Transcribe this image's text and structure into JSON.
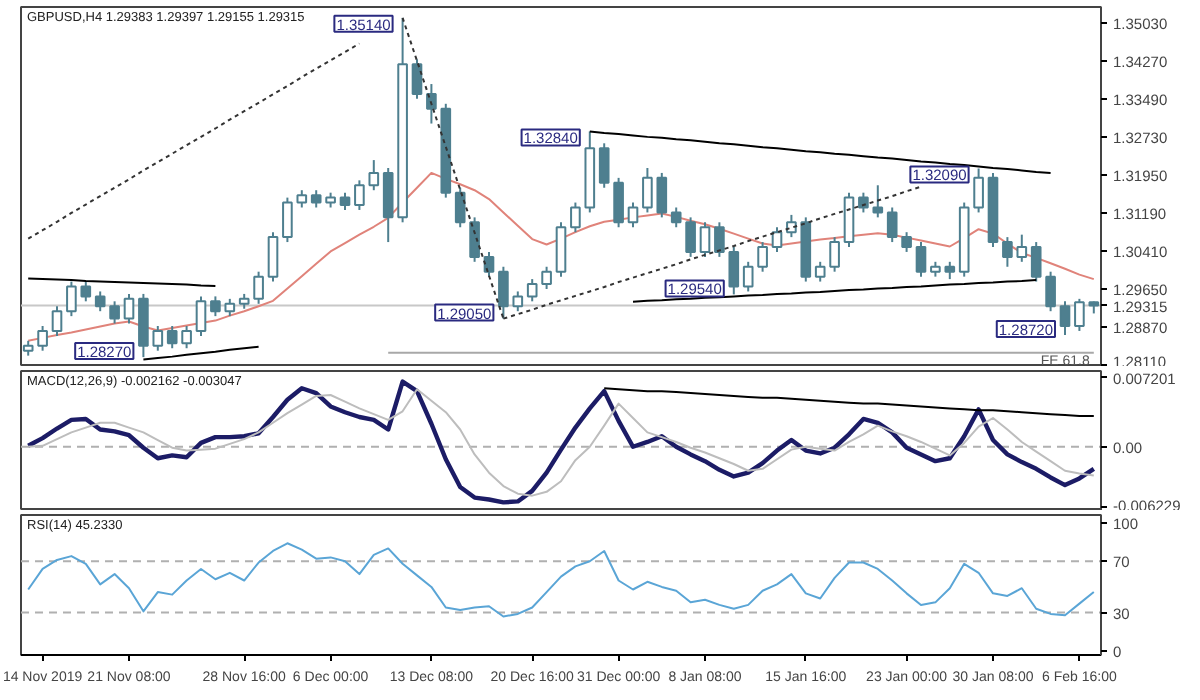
{
  "chart_data": [
    {
      "type": "candlestick",
      "title": "GBPUSD,H4  1.29383 1.29397 1.29155 1.29315",
      "color": "#4e7f8f",
      "categories": [
        null,
        null,
        null,
        null,
        null,
        null,
        null,
        null,
        null,
        null,
        null,
        null,
        null,
        null,
        null,
        null,
        null,
        null,
        null,
        null,
        null,
        null,
        null,
        null,
        null,
        null,
        null,
        null,
        null,
        null,
        null,
        null,
        null,
        null,
        null,
        null,
        null,
        null,
        null,
        null,
        null,
        null,
        null,
        null,
        null,
        null,
        null,
        null,
        null,
        null,
        null,
        null,
        null,
        null,
        null,
        null,
        null,
        null,
        null,
        null,
        null,
        null,
        null,
        null,
        null,
        null,
        null,
        null,
        null,
        null,
        null,
        null,
        null,
        null,
        null
      ],
      "ohlc": [
        [
          1.284,
          1.286,
          1.283,
          1.285
        ],
        [
          1.285,
          1.289,
          1.284,
          1.288
        ],
        [
          1.288,
          1.293,
          1.287,
          1.292
        ],
        [
          1.292,
          1.298,
          1.291,
          1.297
        ],
        [
          1.297,
          1.298,
          1.294,
          1.295
        ],
        [
          1.295,
          1.296,
          1.292,
          1.293
        ],
        [
          1.293,
          1.294,
          1.2895,
          1.2905
        ],
        [
          1.2905,
          1.2955,
          1.2895,
          1.2945
        ],
        [
          1.2945,
          1.2955,
          1.2827,
          1.285
        ],
        [
          1.285,
          1.289,
          1.284,
          1.288
        ],
        [
          1.288,
          1.289,
          1.2845,
          1.2855
        ],
        [
          1.2855,
          1.289,
          1.2845,
          1.288
        ],
        [
          1.288,
          1.295,
          1.287,
          1.294
        ],
        [
          1.294,
          1.295,
          1.291,
          1.292
        ],
        [
          1.292,
          1.2945,
          1.291,
          1.2935
        ],
        [
          1.2935,
          1.2955,
          1.2925,
          1.2945
        ],
        [
          1.2945,
          1.3,
          1.2935,
          1.299
        ],
        [
          1.299,
          1.308,
          1.298,
          1.307
        ],
        [
          1.307,
          1.315,
          1.306,
          1.314
        ],
        [
          1.314,
          1.3165,
          1.313,
          1.3155
        ],
        [
          1.3155,
          1.3165,
          1.313,
          1.314
        ],
        [
          1.314,
          1.316,
          1.313,
          1.315
        ],
        [
          1.315,
          1.316,
          1.3125,
          1.3135
        ],
        [
          1.3135,
          1.3185,
          1.3125,
          1.3175
        ],
        [
          1.3175,
          1.3226,
          1.3165,
          1.32
        ],
        [
          1.32,
          1.321,
          1.306,
          1.311
        ],
        [
          1.311,
          1.3514,
          1.31,
          1.342
        ],
        [
          1.342,
          1.343,
          1.335,
          1.336
        ],
        [
          1.336,
          1.338,
          1.33,
          1.333
        ],
        [
          1.333,
          1.334,
          1.315,
          1.316
        ],
        [
          1.316,
          1.317,
          1.309,
          1.31
        ],
        [
          1.31,
          1.311,
          1.302,
          1.303
        ],
        [
          1.303,
          1.304,
          1.299,
          1.3
        ],
        [
          1.3,
          1.301,
          1.2905,
          1.293
        ],
        [
          1.293,
          1.296,
          1.292,
          1.295
        ],
        [
          1.295,
          1.2985,
          1.294,
          1.2975
        ],
        [
          1.2975,
          1.301,
          1.2965,
          1.3
        ],
        [
          1.3,
          1.31,
          1.299,
          1.309
        ],
        [
          1.309,
          1.314,
          1.308,
          1.313
        ],
        [
          1.313,
          1.3284,
          1.312,
          1.325
        ],
        [
          1.325,
          1.326,
          1.317,
          1.318
        ],
        [
          1.318,
          1.319,
          1.309,
          1.31
        ],
        [
          1.31,
          1.314,
          1.309,
          1.313
        ],
        [
          1.313,
          1.321,
          1.312,
          1.319
        ],
        [
          1.319,
          1.32,
          1.311,
          1.312
        ],
        [
          1.312,
          1.313,
          1.309,
          1.31
        ],
        [
          1.31,
          1.311,
          1.303,
          1.304
        ],
        [
          1.304,
          1.31,
          1.303,
          1.309
        ],
        [
          1.309,
          1.31,
          1.303,
          1.304
        ],
        [
          1.304,
          1.305,
          1.2954,
          1.297
        ],
        [
          1.297,
          1.302,
          1.296,
          1.301
        ],
        [
          1.301,
          1.306,
          1.3,
          1.305
        ],
        [
          1.305,
          1.309,
          1.304,
          1.308
        ],
        [
          1.308,
          1.3115,
          1.307,
          1.31
        ],
        [
          1.31,
          1.311,
          1.298,
          1.299
        ],
        [
          1.299,
          1.302,
          1.298,
          1.301
        ],
        [
          1.301,
          1.307,
          1.3,
          1.306
        ],
        [
          1.306,
          1.316,
          1.305,
          1.315
        ],
        [
          1.315,
          1.316,
          1.312,
          1.313
        ],
        [
          1.313,
          1.3175,
          1.311,
          1.312
        ],
        [
          1.312,
          1.313,
          1.306,
          1.307
        ],
        [
          1.307,
          1.308,
          1.304,
          1.305
        ],
        [
          1.305,
          1.306,
          1.299,
          1.3
        ],
        [
          1.3,
          1.302,
          1.299,
          1.301
        ],
        [
          1.301,
          1.302,
          1.2985,
          1.3
        ],
        [
          1.3,
          1.314,
          1.299,
          1.313
        ],
        [
          1.313,
          1.3209,
          1.312,
          1.319
        ],
        [
          1.319,
          1.32,
          1.305,
          1.306
        ],
        [
          1.306,
          1.307,
          1.301,
          1.303
        ],
        [
          1.303,
          1.3075,
          1.302,
          1.305
        ],
        [
          1.305,
          1.306,
          1.298,
          1.299
        ],
        [
          1.299,
          1.3,
          1.292,
          1.293
        ],
        [
          1.293,
          1.294,
          1.2872,
          1.289
        ],
        [
          1.289,
          1.2945,
          1.288,
          1.29383
        ],
        [
          1.29383,
          1.29397,
          1.29155,
          1.29315
        ]
      ],
      "series": [
        {
          "type": "line",
          "color": "#e0837a",
          "values": [
            1.286,
            1.2866,
            1.2872,
            1.2877,
            1.2883,
            1.2889,
            1.2895,
            1.2899,
            1.2889,
            1.2881,
            1.2886,
            1.2891,
            1.2896,
            1.2901,
            1.2911,
            1.292,
            1.293,
            1.2941,
            1.2966,
            1.2991,
            1.3016,
            1.3041,
            1.3058,
            1.3075,
            1.3091,
            1.3109,
            1.314,
            1.317,
            1.32,
            1.3188,
            1.3177,
            1.3165,
            1.3147,
            1.312,
            1.3093,
            1.3066,
            1.3055,
            1.3067,
            1.308,
            1.3092,
            1.3101,
            1.3105,
            1.311,
            1.3114,
            1.3118,
            1.3111,
            1.3103,
            1.3096,
            1.3087,
            1.3077,
            1.3067,
            1.3057,
            1.3053,
            1.3057,
            1.3061,
            1.3065,
            1.3068,
            1.3072,
            1.3075,
            1.3078,
            1.3075,
            1.3069,
            1.3063,
            1.3057,
            1.3051,
            1.3068,
            1.3086,
            1.3077,
            1.3057,
            1.3038,
            1.3028,
            1.3017,
            1.3006,
            1.2994,
            1.2985
          ]
        },
        {
          "type": "line",
          "color": "#000000",
          "line_style": "solid",
          "values": [
            1.2986,
            1.2985,
            1.2984,
            1.2983,
            1.2981,
            1.298,
            1.2979,
            1.2978,
            1.2977,
            1.2976,
            1.2975,
            1.2974,
            1.2972,
            1.2971,
            null,
            null,
            null,
            null,
            null,
            null,
            null,
            null,
            null,
            null,
            null,
            null,
            null,
            null,
            null,
            null,
            null,
            null,
            null,
            null,
            null,
            null,
            null,
            null,
            null,
            null,
            null,
            null,
            null,
            null,
            null,
            null,
            null,
            null,
            null,
            null,
            null,
            null,
            null,
            null,
            null,
            null,
            null,
            null,
            null,
            null,
            null,
            null,
            null,
            null,
            null,
            null,
            null,
            null,
            null,
            null,
            null,
            null,
            null,
            null,
            null
          ]
        },
        {
          "type": "line",
          "color": "#000000",
          "line_style": "solid",
          "values": [
            null,
            null,
            null,
            null,
            null,
            null,
            null,
            null,
            1.2822,
            1.2825,
            1.2828,
            1.2832,
            1.2835,
            1.2838,
            1.2842,
            1.2845,
            1.2848,
            null,
            null,
            null,
            null,
            null,
            null,
            null,
            null,
            null,
            null,
            null,
            null,
            null,
            null,
            null,
            null,
            null,
            null,
            null,
            null,
            null,
            null,
            null,
            null,
            null,
            null,
            null,
            null,
            null,
            null,
            null,
            null,
            null,
            null,
            null,
            null,
            null,
            null,
            null,
            null,
            null,
            null,
            null,
            null,
            null,
            null,
            null,
            null,
            null,
            null,
            null,
            null,
            null,
            null,
            null,
            null,
            null,
            null
          ]
        },
        {
          "type": "line",
          "color": "#000000",
          "line_style": "solid",
          "values": [
            null,
            null,
            null,
            null,
            null,
            null,
            null,
            null,
            null,
            null,
            null,
            null,
            null,
            null,
            null,
            null,
            null,
            null,
            null,
            null,
            null,
            null,
            null,
            null,
            null,
            null,
            null,
            null,
            null,
            null,
            null,
            null,
            null,
            null,
            null,
            null,
            null,
            null,
            null,
            1.3284,
            1.3281,
            1.3279,
            1.3276,
            1.3273,
            1.3271,
            1.3268,
            1.3266,
            1.3263,
            1.326,
            1.3258,
            1.3255,
            1.3252,
            1.325,
            1.3247,
            1.3244,
            1.3242,
            1.3239,
            1.3237,
            1.3234,
            1.3231,
            1.3229,
            1.3226,
            1.3223,
            1.3221,
            1.3218,
            1.3216,
            1.3213,
            1.321,
            1.3208,
            1.3205,
            1.3202,
            1.32,
            null,
            null,
            null
          ]
        },
        {
          "type": "line",
          "color": "#000000",
          "line_style": "solid",
          "values": [
            null,
            null,
            null,
            null,
            null,
            null,
            null,
            null,
            null,
            null,
            null,
            null,
            null,
            null,
            null,
            null,
            null,
            null,
            null,
            null,
            null,
            null,
            null,
            null,
            null,
            null,
            null,
            null,
            null,
            null,
            null,
            null,
            null,
            null,
            null,
            null,
            null,
            null,
            null,
            null,
            null,
            null,
            1.2939,
            1.2941,
            1.2942,
            1.2944,
            1.2945,
            1.2947,
            1.2948,
            1.295,
            1.2952,
            1.2953,
            1.2955,
            1.2956,
            1.2958,
            1.2959,
            1.2961,
            1.2963,
            1.2964,
            1.2966,
            1.2967,
            1.2969,
            1.297,
            1.2972,
            1.2974,
            1.2975,
            1.2977,
            1.2978,
            1.298,
            1.2981,
            1.2983,
            null,
            null,
            null,
            null
          ]
        },
        {
          "type": "line",
          "color": "#333333",
          "line_style": "dotted",
          "values": [
            1.3067,
            1.3084,
            1.3101,
            1.3119,
            1.3136,
            1.3153,
            1.317,
            1.3187,
            1.3205,
            1.3222,
            1.3239,
            1.3256,
            1.3273,
            1.329,
            1.3308,
            1.3325,
            1.3342,
            1.3359,
            1.3376,
            1.3394,
            1.3411,
            1.3428,
            1.3445,
            1.3462,
            null,
            null,
            null,
            null,
            null,
            null,
            null,
            null,
            null,
            null,
            null,
            null,
            null,
            null,
            null,
            null,
            null,
            null,
            null,
            null,
            null,
            null,
            null,
            null,
            null,
            null,
            null,
            null,
            null,
            null,
            null,
            null,
            null,
            null,
            null,
            null,
            null,
            null,
            null,
            null,
            null,
            null,
            null,
            null,
            null,
            null,
            null,
            null,
            null,
            null,
            null
          ]
        },
        {
          "type": "line",
          "color": "#333333",
          "line_style": "dotted",
          "values": [
            null,
            null,
            null,
            null,
            null,
            null,
            null,
            null,
            null,
            null,
            null,
            null,
            null,
            null,
            null,
            null,
            null,
            null,
            null,
            null,
            null,
            null,
            null,
            null,
            null,
            null,
            1.3514,
            1.3427,
            1.334,
            1.3253,
            1.3166,
            1.3079,
            1.2992,
            1.2905,
            null,
            null,
            null,
            null,
            null,
            null,
            null,
            null,
            null,
            null,
            null,
            null,
            null,
            null,
            null,
            null,
            null,
            null,
            null,
            null,
            null,
            null,
            null,
            null,
            null,
            null,
            null,
            null,
            null,
            null,
            null,
            null,
            null,
            null,
            null,
            null,
            null,
            null,
            null,
            null,
            null
          ]
        },
        {
          "type": "line",
          "color": "#333333",
          "line_style": "dotted",
          "values": [
            null,
            null,
            null,
            null,
            null,
            null,
            null,
            null,
            null,
            null,
            null,
            null,
            null,
            null,
            null,
            null,
            null,
            null,
            null,
            null,
            null,
            null,
            null,
            null,
            null,
            null,
            null,
            null,
            null,
            null,
            null,
            null,
            null,
            1.2905,
            1.2914,
            1.2923,
            1.2933,
            1.2942,
            1.2951,
            1.296,
            1.2969,
            1.2979,
            1.2988,
            1.2997,
            1.3006,
            1.3015,
            1.3025,
            1.3034,
            1.3043,
            1.3052,
            1.3062,
            1.3071,
            1.308,
            1.3089,
            1.3098,
            1.3108,
            1.3117,
            1.3126,
            1.3135,
            1.3144,
            1.3153,
            1.3163,
            1.3172,
            null,
            null,
            null,
            null,
            null,
            null,
            null,
            null,
            null,
            null,
            null,
            null
          ]
        },
        {
          "type": "line",
          "name": "FE 61.8",
          "color": "#a8a8a8",
          "line_style": "solid",
          "values": [
            null,
            null,
            null,
            null,
            null,
            null,
            null,
            null,
            null,
            null,
            null,
            null,
            null,
            null,
            null,
            null,
            null,
            null,
            null,
            null,
            null,
            null,
            null,
            null,
            null,
            1.2836,
            1.2836,
            1.2836,
            1.2836,
            1.2836,
            1.2836,
            1.2836,
            1.2836,
            1.2836,
            1.2836,
            1.2836,
            1.2836,
            1.2836,
            1.2836,
            1.2836,
            1.2836,
            1.2836,
            1.2836,
            1.2836,
            1.2836,
            1.2836,
            1.2836,
            1.2836,
            1.2836,
            1.2836,
            1.2836,
            1.2836,
            1.2836,
            1.2836,
            1.2836,
            1.2836,
            1.2836,
            1.2836,
            1.2836,
            1.2836,
            1.2836,
            1.2836,
            1.2836,
            1.2836,
            1.2836,
            1.2836,
            1.2836,
            1.2836,
            1.2836,
            1.2836,
            1.2836,
            1.2836,
            1.2836,
            1.2836,
            1.2836
          ]
        }
      ],
      "ref_lines": [
        {
          "axis": "y",
          "value": 1.29315,
          "label": "1.29315",
          "color": "#c8c8c8"
        }
      ],
      "annotations": [
        "1.35140",
        "1.32840",
        "1.29050",
        "1.28270",
        "1.29540",
        "1.32090",
        "1.28720"
      ],
      "ylim": [
        1.2807,
        1.3536
      ],
      "yticks": [
        {
          "value": 1.2811,
          "label": "1.28110"
        },
        {
          "value": 1.2887,
          "label": "1.28870"
        },
        {
          "value": 1.2965,
          "label": "1.29650"
        },
        {
          "value": 1.3041,
          "label": "1.30410"
        },
        {
          "value": 1.3119,
          "label": "1.31190"
        },
        {
          "value": 1.3195,
          "label": "1.31950"
        },
        {
          "value": 1.3273,
          "label": "1.32730"
        },
        {
          "value": 1.3349,
          "label": "1.33490"
        },
        {
          "value": 1.3427,
          "label": "1.34270"
        },
        {
          "value": 1.3503,
          "label": "1.35030"
        }
      ],
      "tick_labels": "y"
    },
    {
      "type": "line",
      "title": "MACD(12,26,9) -0.002162 -0.003047",
      "categories": [
        null,
        null,
        null,
        null,
        null,
        null,
        null,
        null,
        null,
        null,
        null,
        null,
        null,
        null,
        null,
        null,
        null,
        null,
        null,
        null,
        null,
        null,
        null,
        null,
        null,
        null,
        null,
        null,
        null,
        null,
        null,
        null,
        null,
        null,
        null,
        null,
        null,
        null,
        null,
        null,
        null,
        null,
        null,
        null,
        null,
        null,
        null,
        null,
        null,
        null,
        null,
        null,
        null,
        null,
        null,
        null,
        null,
        null,
        null,
        null,
        null,
        null,
        null,
        null,
        null,
        null,
        null,
        null,
        null,
        null,
        null,
        null,
        null,
        null,
        null
      ],
      "series": [
        {
          "color": "#1c1c66",
          "values": [
            0.0001,
            0.0009,
            0.0019,
            0.0028,
            0.0029,
            0.0018,
            0.0016,
            0.0012,
            -0.0001,
            -0.0012,
            -0.0009,
            -0.0011,
            0.0004,
            0.001,
            0.001,
            0.0011,
            0.0014,
            0.0031,
            0.0049,
            0.0061,
            0.0056,
            0.0042,
            0.0036,
            0.0031,
            0.0028,
            0.0018,
            0.0068,
            0.0058,
            0.0024,
            -0.0013,
            -0.0042,
            -0.0053,
            -0.0055,
            -0.0058,
            -0.0057,
            -0.0046,
            -0.0027,
            -0.0003,
            0.002,
            0.004,
            0.0058,
            0.0027,
            0.0,
            0.0005,
            0.0011,
            0.0,
            -0.0008,
            -0.0015,
            -0.0024,
            -0.0031,
            -0.0027,
            -0.0017,
            -0.0004,
            0.0007,
            -0.0004,
            -0.0007,
            -0.0001,
            0.0013,
            0.0029,
            0.0025,
            0.0015,
            -0.0001,
            -0.0008,
            -0.0015,
            -0.0012,
            0.0011,
            0.0039,
            0.0007,
            -0.0008,
            -0.0016,
            -0.0023,
            -0.0032,
            -0.004,
            -0.0033,
            -0.0023
          ]
        },
        {
          "color": "#bdbdbd",
          "values": [
            0.0,
            0.0001,
            0.0008,
            0.0015,
            0.002,
            0.0025,
            0.0025,
            0.002,
            0.0015,
            0.0007,
            -0.0001,
            -0.0004,
            -0.0003,
            -0.0002,
            0.0003,
            0.0008,
            0.0015,
            0.0025,
            0.0035,
            0.0044,
            0.0053,
            0.0054,
            0.0047,
            0.004,
            0.0034,
            0.0028,
            0.0037,
            0.006,
            0.0048,
            0.0036,
            0.0018,
            -0.0008,
            -0.0027,
            -0.0041,
            -0.0049,
            -0.0051,
            -0.0047,
            -0.0036,
            -0.0014,
            0.0,
            0.0022,
            0.0045,
            0.003,
            0.0015,
            0.001,
            0.0005,
            -0.0001,
            -0.0006,
            -0.0012,
            -0.0018,
            -0.0025,
            -0.0023,
            -0.0013,
            -0.0003,
            0.0,
            -0.0002,
            -0.0004,
            0.0005,
            0.0013,
            0.0022,
            0.0016,
            0.0011,
            0.0005,
            -0.0002,
            -0.0009,
            0.0004,
            0.0021,
            0.003,
            0.0018,
            0.0005,
            -0.0005,
            -0.0015,
            -0.0025,
            -0.0028,
            -0.003
          ]
        },
        {
          "color": "#000000",
          "values": [
            null,
            null,
            null,
            null,
            null,
            null,
            null,
            null,
            null,
            null,
            null,
            null,
            null,
            null,
            null,
            null,
            null,
            null,
            null,
            null,
            null,
            null,
            null,
            null,
            null,
            null,
            null,
            null,
            null,
            null,
            null,
            null,
            null,
            null,
            null,
            null,
            null,
            null,
            null,
            null,
            0.0061,
            0.006,
            0.0059,
            0.0058,
            0.0058,
            0.0057,
            0.0056,
            0.0055,
            0.0054,
            0.0053,
            0.0052,
            0.0051,
            0.0051,
            0.005,
            0.0049,
            0.0048,
            0.0047,
            0.0046,
            0.0045,
            0.0045,
            0.0044,
            0.0043,
            0.0042,
            0.0041,
            0.004,
            0.0039,
            0.0038,
            0.0038,
            0.0037,
            0.0036,
            0.0035,
            0.0034,
            0.0033,
            0.0032,
            0.0032
          ]
        }
      ],
      "ref_lines": [
        {
          "axis": "y",
          "value": 0,
          "color": "#b0b0b0",
          "line_style": "dashed"
        }
      ],
      "ylim": [
        -0.0067,
        0.0079
      ],
      "yticks": [
        {
          "value": -0.006229,
          "label": "-0.006229"
        },
        {
          "value": 0,
          "label": "0.00"
        },
        {
          "value": 0.007201,
          "label": "0.007201"
        }
      ],
      "tick_labels": "y"
    },
    {
      "type": "line",
      "title": "RSI(14) 45.2330",
      "categories": [
        null,
        "14 Nov 2019",
        null,
        null,
        null,
        null,
        null,
        "21 Nov 08:00",
        null,
        null,
        null,
        null,
        null,
        null,
        null,
        "28 Nov 16:00",
        null,
        null,
        null,
        null,
        null,
        "6 Dec 00:00",
        null,
        null,
        null,
        null,
        null,
        null,
        "13 Dec 08:00",
        null,
        null,
        null,
        null,
        null,
        null,
        "20 Dec 16:00",
        null,
        null,
        null,
        null,
        null,
        "31 Dec 00:00",
        null,
        null,
        null,
        null,
        null,
        "8 Jan 08:00",
        null,
        null,
        null,
        null,
        null,
        null,
        "15 Jan 16:00",
        null,
        null,
        null,
        null,
        null,
        null,
        "23 Jan 00:00",
        null,
        null,
        null,
        null,
        null,
        "30 Jan 08:00",
        null,
        null,
        null,
        null,
        null,
        "6 Feb 16:00",
        null
      ],
      "series": [
        {
          "color": "#5aa5d6",
          "values": [
            48,
            64,
            71,
            74,
            68,
            52,
            60,
            49,
            31,
            46,
            44,
            55,
            64,
            56,
            61,
            55,
            69,
            78,
            84,
            79,
            72,
            73,
            70,
            60,
            75,
            80,
            68,
            59,
            50,
            34,
            32,
            34,
            35,
            27,
            29,
            34,
            46,
            58,
            66,
            70,
            78,
            55,
            48,
            54,
            50,
            47,
            38,
            40,
            36,
            33,
            36,
            47,
            52,
            60,
            45,
            41,
            57,
            69,
            69,
            64,
            55,
            45,
            36,
            38,
            49,
            68,
            61,
            45,
            43,
            49,
            33,
            29,
            28,
            37,
            46
          ]
        }
      ],
      "ref_lines": [
        {
          "axis": "y",
          "value": 30,
          "color": "#b0b0b0",
          "line_style": "dashed"
        },
        {
          "axis": "y",
          "value": 70,
          "color": "#b0b0b0",
          "line_style": "dashed"
        }
      ],
      "ylim": [
        -3,
        106
      ],
      "yticks": [
        0,
        30,
        70,
        100
      ]
    }
  ]
}
